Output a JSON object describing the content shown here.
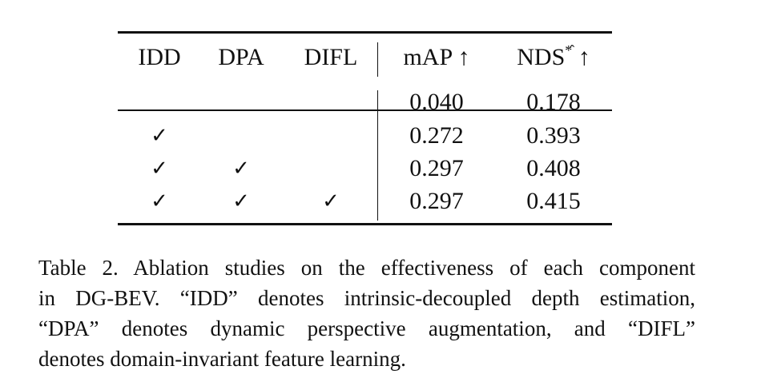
{
  "table": {
    "headers": {
      "idd": "IDD",
      "dpa": "DPA",
      "difl": "DIFL",
      "map": "mAP ↑",
      "nds_main": "NDS",
      "nds_sup": "*̂",
      "nds_arrow": " ↑"
    },
    "rows": [
      {
        "idd": "",
        "dpa": "",
        "difl": "",
        "map": "0.040",
        "nds": "0.178"
      },
      {
        "idd": "✓",
        "dpa": "",
        "difl": "",
        "map": "0.272",
        "nds": "0.393"
      },
      {
        "idd": "✓",
        "dpa": "✓",
        "difl": "",
        "map": "0.297",
        "nds": "0.408"
      },
      {
        "idd": "✓",
        "dpa": "✓",
        "difl": "✓",
        "map": "0.297",
        "nds": "0.415"
      }
    ]
  },
  "caption": {
    "line1": "Table 2. Ablation studies on the effectiveness of each component",
    "line2": "in DG-BEV. “IDD” denotes intrinsic-decoupled depth estimation,",
    "line3": "“DPA” denotes dynamic perspective augmentation, and “DIFL”",
    "line4": "denotes domain-invariant feature learning."
  }
}
